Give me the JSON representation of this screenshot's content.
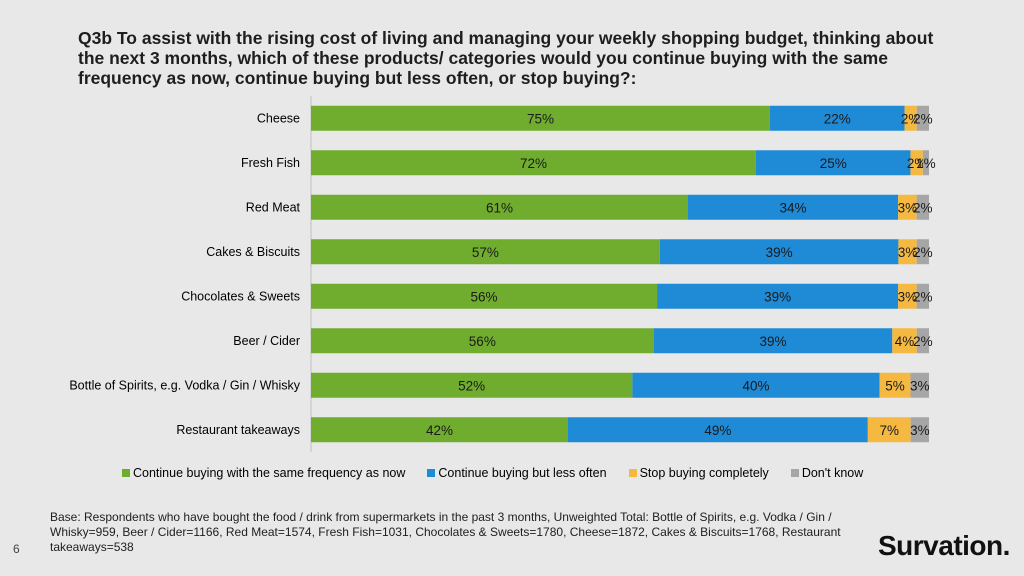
{
  "title": "Q3b To assist with the rising cost of living and managing your weekly shopping budget, thinking about the next 3 months, which of these products/ categories would you continue buying with the same frequency as now, continue buying but less often, or stop buying?:",
  "base_note": "Base: Respondents who have bought the food / drink from supermarkets in the past 3 months, Unweighted Total: Bottle of Spirits, e.g. Vodka / Gin / Whisky=959, Beer / Cider=1166, Red Meat=1574, Fresh Fish=1031, Chocolates & Sweets=1780, Cheese=1872, Cakes & Biscuits=1768, Restaurant takeaways=538",
  "page_number": "6",
  "logo": "Survation.",
  "colors": {
    "same_frequency": "#70ad2f",
    "less_often": "#1f8ad6",
    "stop_buying": "#f5b942",
    "dont_know": "#a6a6a6"
  },
  "chart_data": {
    "type": "bar",
    "orientation": "horizontal",
    "stacked": true,
    "categories": [
      "Cheese",
      "Fresh Fish",
      "Red Meat",
      "Cakes & Biscuits",
      "Chocolates & Sweets",
      "Beer / Cider",
      "Bottle of Spirits, e.g. Vodka / Gin / Whisky",
      "Restaurant takeaways"
    ],
    "series": [
      {
        "name": "Continue buying with the same frequency as now",
        "values": [
          75,
          72,
          61,
          57,
          56,
          56,
          52,
          42
        ]
      },
      {
        "name": "Continue buying but less often",
        "values": [
          22,
          25,
          34,
          39,
          39,
          39,
          40,
          49
        ]
      },
      {
        "name": "Stop buying completely",
        "values": [
          2,
          2,
          3,
          3,
          3,
          4,
          5,
          7
        ]
      },
      {
        "name": "Don't know",
        "values": [
          2,
          1,
          2,
          2,
          2,
          2,
          3,
          3
        ]
      }
    ],
    "value_suffix": "%",
    "legend_position": "bottom"
  }
}
